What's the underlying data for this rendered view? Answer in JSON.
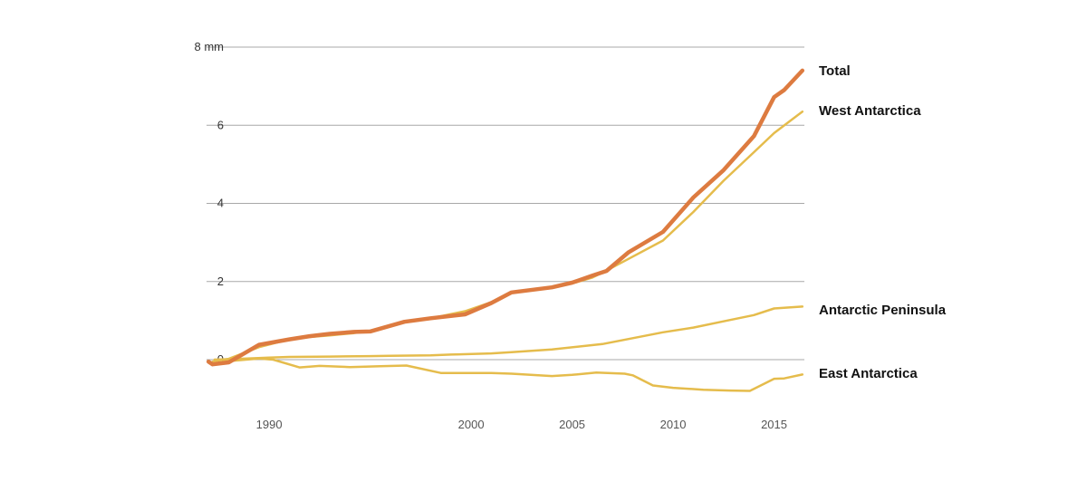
{
  "chart_data": {
    "type": "line",
    "title": "",
    "xlabel": "",
    "ylabel": "",
    "y_unit_label": "8 mm",
    "xlim": [
      1986.9,
      2016.5
    ],
    "ylim": [
      -1,
      8
    ],
    "y_ticks": [
      {
        "value": 0,
        "label": "0"
      },
      {
        "value": 2,
        "label": "2"
      },
      {
        "value": 4,
        "label": "4"
      },
      {
        "value": 6,
        "label": "6"
      },
      {
        "value": 8,
        "label": "8 mm"
      }
    ],
    "x_ticks": [
      {
        "value": 1990,
        "label": "1990"
      },
      {
        "value": 2000,
        "label": "2000"
      },
      {
        "value": 2005,
        "label": "2005"
      },
      {
        "value": 2010,
        "label": "2010"
      },
      {
        "value": 2015,
        "label": "2015"
      }
    ],
    "grid": true,
    "legend": "inline-right",
    "colors": {
      "total": "#dd7b40",
      "regions": "#e5bc4c",
      "grid": "#a8a8a8"
    },
    "series": [
      {
        "name": "Total",
        "color": "#dd7b40",
        "width": 4.5,
        "x": [
          1987,
          1987.2,
          1988,
          1989.5,
          1991,
          1992,
          1993,
          1994.2,
          1995,
          1996.7,
          1998,
          1999.7,
          2001,
          2002,
          2004,
          2005,
          2006,
          2006.7,
          2007.8,
          2009.5,
          2011,
          2012.5,
          2014,
          2015,
          2015.5,
          2016.4
        ],
        "values": [
          -0.05,
          -0.12,
          -0.07,
          0.38,
          0.52,
          0.6,
          0.66,
          0.71,
          0.72,
          0.97,
          1.06,
          1.16,
          1.45,
          1.72,
          1.85,
          1.97,
          2.15,
          2.27,
          2.75,
          3.27,
          4.15,
          4.85,
          5.72,
          6.72,
          6.9,
          7.4
        ]
      },
      {
        "name": "West Antarctica",
        "color": "#e5bc4c",
        "width": 2.5,
        "x": [
          1987.2,
          1988,
          1989.5,
          1991,
          1992,
          1993,
          1994.2,
          1995,
          1996.7,
          1998,
          1999.7,
          2001,
          2002,
          2004,
          2005,
          2006,
          2006.7,
          2007.8,
          2009.5,
          2011,
          2012.5,
          2014,
          2015,
          2016.4
        ],
        "values": [
          -0.05,
          0.02,
          0.32,
          0.52,
          0.58,
          0.62,
          0.68,
          0.74,
          0.98,
          1.06,
          1.24,
          1.47,
          1.73,
          1.85,
          1.95,
          2.1,
          2.28,
          2.58,
          3.05,
          3.78,
          4.58,
          5.31,
          5.8,
          6.35
        ]
      },
      {
        "name": "Antarctic Peninsula",
        "color": "#e5bc4c",
        "width": 2.5,
        "x": [
          1987.3,
          1988.5,
          1990,
          1991,
          1993,
          1995,
          1996,
          1998,
          1999,
          2001,
          2002,
          2004,
          2006.5,
          2008,
          2009.5,
          2011,
          2012.5,
          2014,
          2015,
          2016.4
        ],
        "values": [
          0.0,
          0.02,
          0.05,
          0.07,
          0.08,
          0.09,
          0.1,
          0.11,
          0.13,
          0.16,
          0.19,
          0.26,
          0.4,
          0.55,
          0.7,
          0.82,
          0.98,
          1.14,
          1.31,
          1.36
        ]
      },
      {
        "name": "East Antarctica",
        "color": "#e5bc4c",
        "width": 2.5,
        "x": [
          1987.3,
          1988.2,
          1989.5,
          1990.2,
          1991.5,
          1992.5,
          1994,
          1995.5,
          1996.8,
          1998.5,
          1999.8,
          2001,
          2002,
          2004,
          2005,
          2006.2,
          2007.6,
          2008,
          2009,
          2010,
          2011.5,
          2012.8,
          2013.8,
          2015,
          2015.5,
          2016.4
        ],
        "values": [
          0.0,
          -0.03,
          0.03,
          0.0,
          -0.2,
          -0.16,
          -0.19,
          -0.17,
          -0.15,
          -0.34,
          -0.34,
          -0.34,
          -0.36,
          -0.42,
          -0.39,
          -0.33,
          -0.36,
          -0.4,
          -0.66,
          -0.72,
          -0.77,
          -0.79,
          -0.8,
          -0.49,
          -0.48,
          -0.38
        ]
      }
    ]
  }
}
